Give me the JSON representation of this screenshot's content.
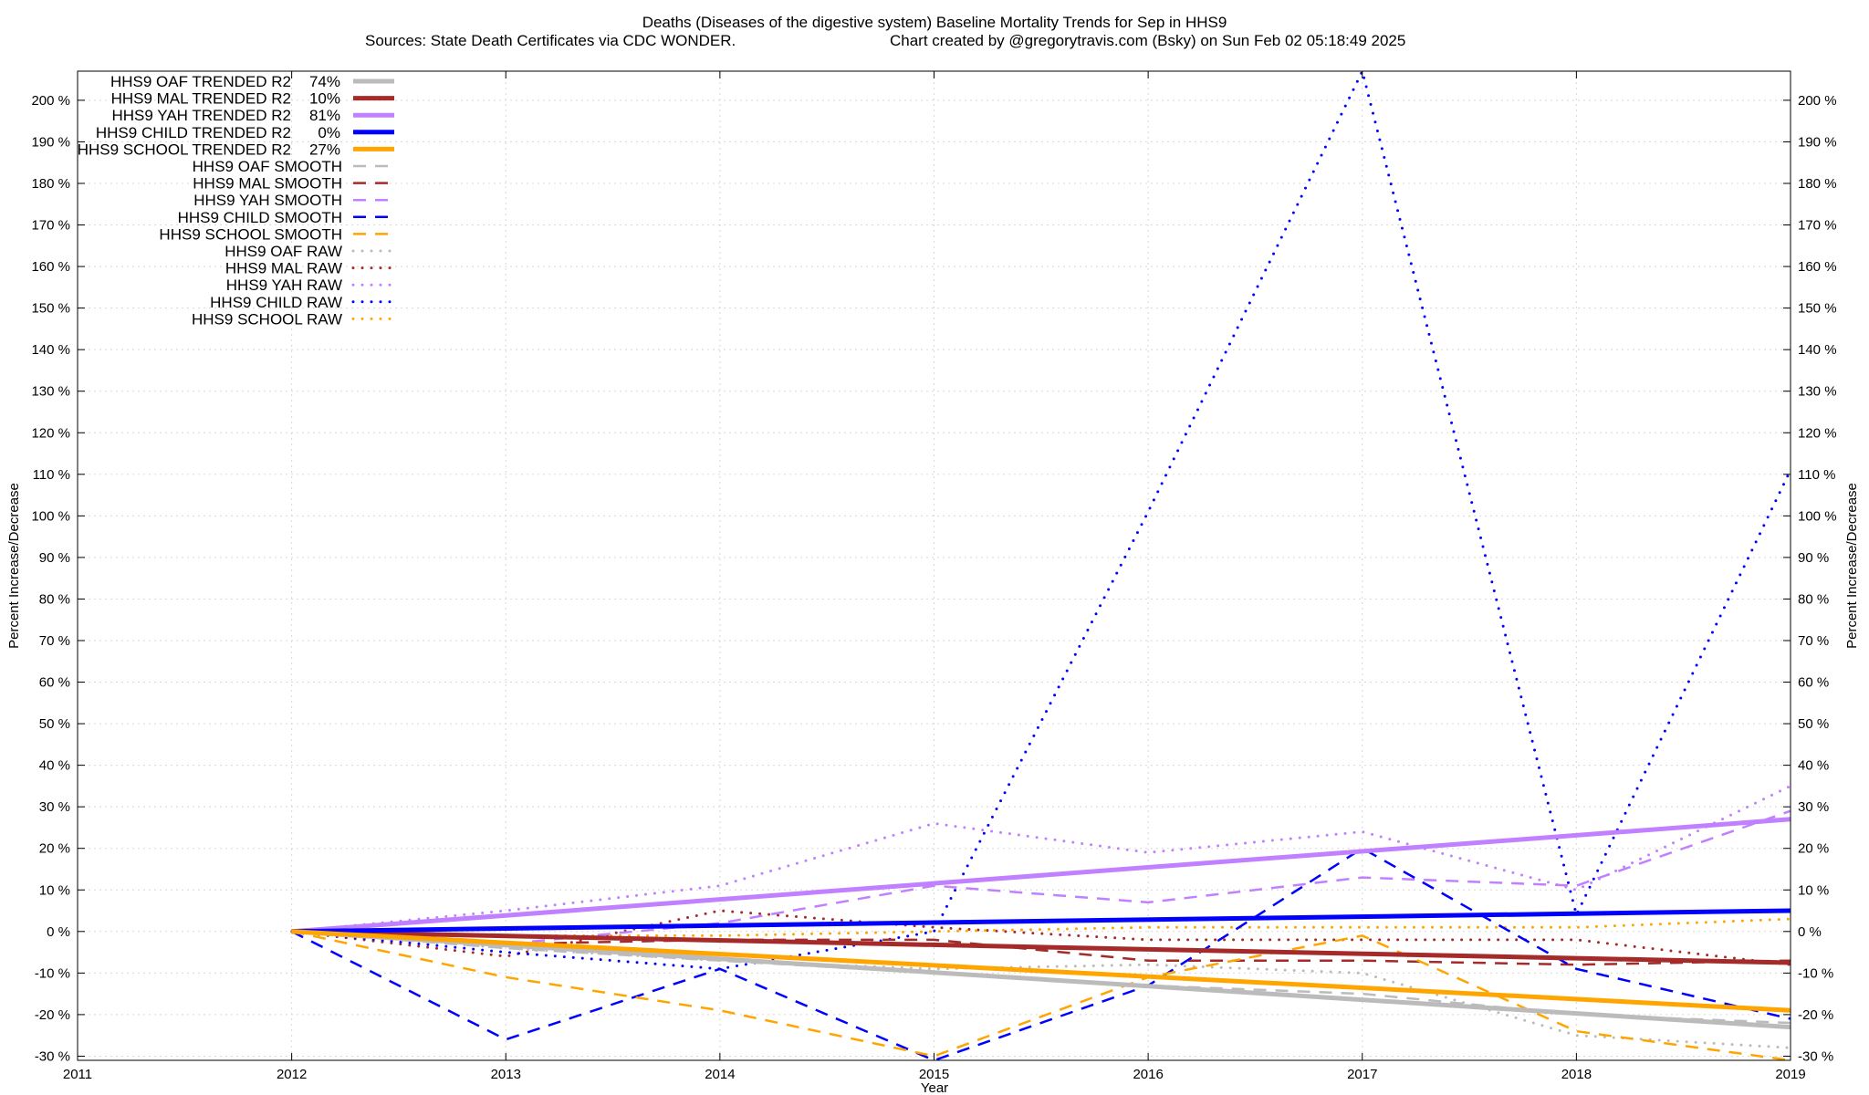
{
  "chart_data": {
    "type": "line",
    "title": "Deaths (Diseases of the digestive system)  Baseline Mortality Trends for Sep in HHS9",
    "subtitle_left": "Sources: State Death Certificates via CDC WONDER.",
    "subtitle_right": "Chart created by @gregorytravis.com (Bsky) on Sun Feb 02 05:18:49 2025",
    "xlabel": "Year",
    "ylabel": "Percent Increase/Decrease",
    "ylabel_right": "Percent Increase/Decrease",
    "xlim": [
      2011,
      2019
    ],
    "ylim": [
      -31,
      207
    ],
    "x_ticks": [
      2011,
      2012,
      2013,
      2014,
      2015,
      2016,
      2017,
      2018,
      2019
    ],
    "x_tick_labels": [
      "2011",
      "2012",
      "2013",
      "2014",
      "2015",
      "2016",
      "2017",
      "2018",
      "2019"
    ],
    "y_ticks": [
      -30,
      -20,
      -10,
      0,
      10,
      20,
      30,
      40,
      50,
      60,
      70,
      80,
      90,
      100,
      110,
      120,
      130,
      140,
      150,
      160,
      170,
      180,
      190,
      200
    ],
    "y_tick_labels": [
      "-30 %",
      "-20 %",
      "-10 %",
      "0 %",
      "10 %",
      "20 %",
      "30 %",
      "40 %",
      "50 %",
      "60 %",
      "70 %",
      "80 %",
      "90 %",
      "100 %",
      "110 %",
      "120 %",
      "130 %",
      "140 %",
      "150 %",
      "160 %",
      "170 %",
      "180 %",
      "190 %",
      "200 %"
    ],
    "grid": true,
    "legend_position": "top-left",
    "series": [
      {
        "name": "HHS9 OAF TRENDED R2",
        "r2": "74%",
        "style": "solid",
        "color": "#bbbbbb",
        "x": [
          2012,
          2019
        ],
        "y": [
          0,
          -23
        ]
      },
      {
        "name": "HHS9 MAL TRENDED R2",
        "r2": "10%",
        "style": "solid",
        "color": "#a52a2a",
        "x": [
          2012,
          2019
        ],
        "y": [
          0,
          -7.5
        ]
      },
      {
        "name": "HHS9 YAH TRENDED R2",
        "r2": "81%",
        "style": "solid",
        "color": "#c080ff",
        "x": [
          2012,
          2019
        ],
        "y": [
          0,
          27
        ]
      },
      {
        "name": "HHS9 CHILD TRENDED R2",
        "r2": "0%",
        "style": "solid",
        "color": "#0000ff",
        "x": [
          2012,
          2019
        ],
        "y": [
          0,
          5
        ]
      },
      {
        "name": "HHS9 SCHOOL TRENDED R2",
        "r2": "27%",
        "style": "solid",
        "color": "#ffa500",
        "x": [
          2012,
          2019
        ],
        "y": [
          0,
          -19
        ]
      },
      {
        "name": "HHS9 OAF SMOOTH",
        "style": "dashed",
        "color": "#bbbbbb",
        "x": [
          2012,
          2013,
          2014,
          2015,
          2016,
          2017,
          2018,
          2019
        ],
        "y": [
          0,
          -4,
          -7,
          -10,
          -13,
          -15,
          -20,
          -22
        ]
      },
      {
        "name": "HHS9 MAL SMOOTH",
        "style": "dashed",
        "color": "#a52a2a",
        "x": [
          2012,
          2013,
          2014,
          2015,
          2016,
          2017,
          2018,
          2019
        ],
        "y": [
          0,
          -3,
          -2,
          -2,
          -7,
          -7,
          -8,
          -7
        ]
      },
      {
        "name": "HHS9 YAH SMOOTH",
        "style": "dashed",
        "color": "#c080ff",
        "x": [
          2012,
          2013,
          2014,
          2015,
          2016,
          2017,
          2018,
          2019
        ],
        "y": [
          0,
          -3,
          2,
          11,
          7,
          13,
          11,
          29
        ]
      },
      {
        "name": "HHS9 CHILD SMOOTH",
        "style": "dashed",
        "color": "#0000ff",
        "x": [
          2012,
          2013,
          2014,
          2015,
          2016,
          2017,
          2018,
          2019
        ],
        "y": [
          0,
          -26,
          -9,
          -31,
          -13,
          20,
          -9,
          -21
        ]
      },
      {
        "name": "HHS9 SCHOOL SMOOTH",
        "style": "dashed",
        "color": "#ffa500",
        "x": [
          2012,
          2013,
          2014,
          2015,
          2016,
          2017,
          2018,
          2019
        ],
        "y": [
          0,
          -11,
          -19,
          -30,
          -11,
          -1,
          -24,
          -31
        ]
      },
      {
        "name": "HHS9 OAF RAW",
        "style": "dotted",
        "color": "#bbbbbb",
        "x": [
          2012,
          2013,
          2014,
          2015,
          2016,
          2017,
          2018,
          2019
        ],
        "y": [
          0,
          -4,
          -7,
          -9,
          -8,
          -10,
          -25,
          -28
        ]
      },
      {
        "name": "HHS9 MAL RAW",
        "style": "dotted",
        "color": "#a52a2a",
        "x": [
          2012,
          2013,
          2014,
          2015,
          2016,
          2017,
          2018,
          2019
        ],
        "y": [
          0,
          -6,
          5,
          1,
          -2,
          -2,
          -2,
          -8
        ]
      },
      {
        "name": "HHS9 YAH RAW",
        "style": "dotted",
        "color": "#c080ff",
        "x": [
          2012,
          2013,
          2014,
          2015,
          2016,
          2017,
          2018,
          2019
        ],
        "y": [
          0,
          5,
          11,
          26,
          19,
          24,
          10,
          35
        ]
      },
      {
        "name": "HHS9 CHILD RAW",
        "style": "dotted",
        "color": "#0000ff",
        "x": [
          2012,
          2013,
          2014,
          2015,
          2016,
          2017,
          2018,
          2019
        ],
        "y": [
          0,
          -5,
          -9,
          0,
          101,
          207,
          4,
          111
        ]
      },
      {
        "name": "HHS9 SCHOOL RAW",
        "style": "dotted",
        "color": "#ffa500",
        "x": [
          2012,
          2013,
          2014,
          2015,
          2016,
          2017,
          2018,
          2019
        ],
        "y": [
          0,
          -1,
          -1,
          0,
          1,
          1,
          1,
          3
        ]
      }
    ]
  }
}
